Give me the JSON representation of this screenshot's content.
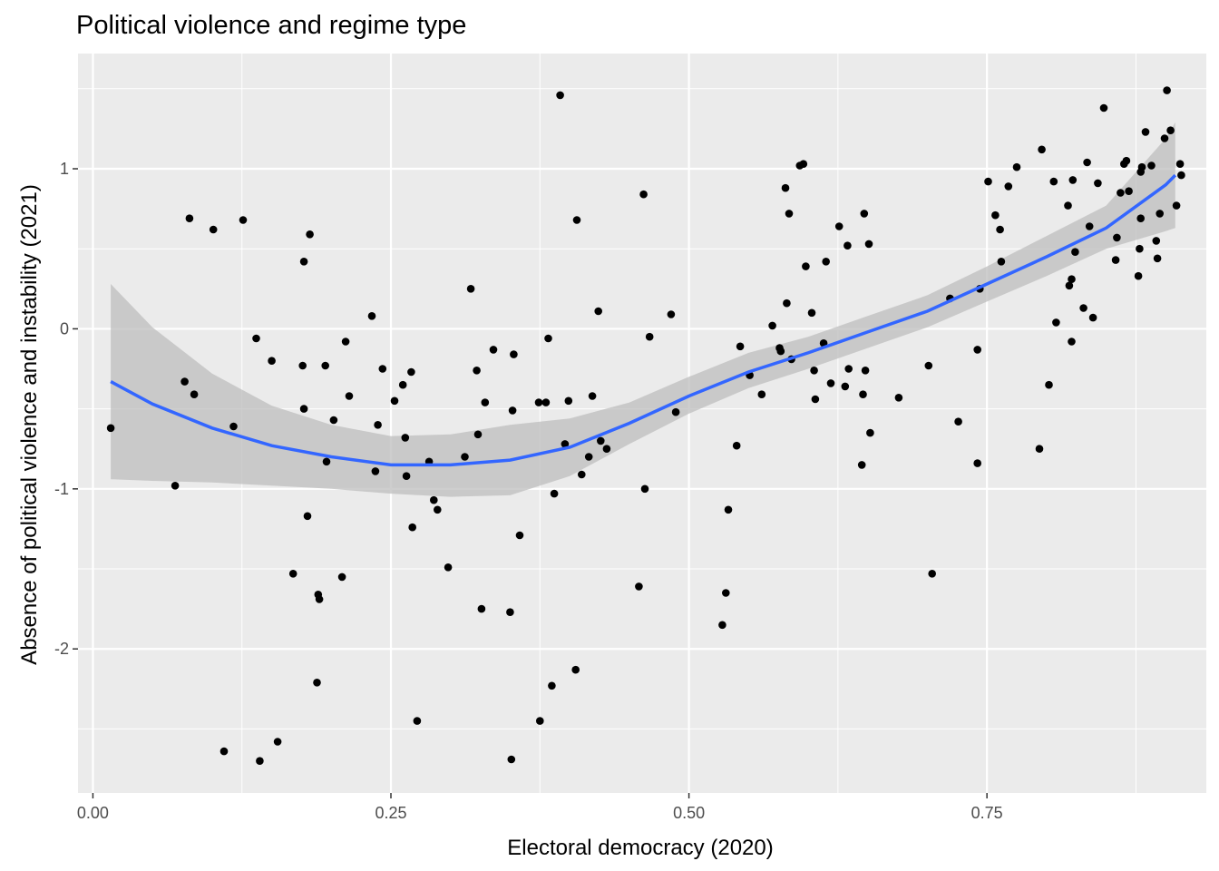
{
  "chart_data": {
    "type": "scatter",
    "title": "Political violence and regime type",
    "xlabel": "Electoral democracy (2020)",
    "ylabel": "Absence of political violence and instability (2021)",
    "xlim": [
      -0.0125,
      0.934
    ],
    "ylim": [
      -2.9,
      1.72
    ],
    "x_ticks": [
      0.0,
      0.25,
      0.5,
      0.75
    ],
    "x_tick_labels": [
      "0.00",
      "0.25",
      "0.50",
      "0.75"
    ],
    "y_ticks": [
      -2,
      -1,
      0,
      1
    ],
    "y_tick_labels": [
      "-2",
      "-1",
      "0",
      "1"
    ],
    "grid": true,
    "legend": "none",
    "colors": {
      "panel_background": "#ebebeb",
      "grid_line": "#ffffff",
      "point": "#000000",
      "smooth_line": "#3366ff",
      "confidence_band": "#bebebe"
    },
    "smooth": {
      "method": "loess",
      "x": [
        0.015,
        0.05,
        0.1,
        0.15,
        0.2,
        0.25,
        0.3,
        0.35,
        0.4,
        0.45,
        0.5,
        0.55,
        0.6,
        0.65,
        0.7,
        0.75,
        0.8,
        0.85,
        0.9,
        0.908
      ],
      "y": [
        -0.33,
        -0.47,
        -0.62,
        -0.73,
        -0.8,
        -0.85,
        -0.85,
        -0.82,
        -0.74,
        -0.59,
        -0.42,
        -0.27,
        -0.15,
        -0.02,
        0.11,
        0.28,
        0.45,
        0.63,
        0.9,
        0.96
      ],
      "lower": [
        -0.94,
        -0.95,
        -0.96,
        -0.98,
        -1.0,
        -1.03,
        -1.05,
        -1.04,
        -0.92,
        -0.72,
        -0.53,
        -0.37,
        -0.25,
        -0.12,
        0.01,
        0.17,
        0.33,
        0.5,
        0.61,
        0.63
      ],
      "upper": [
        0.28,
        0.01,
        -0.28,
        -0.48,
        -0.6,
        -0.67,
        -0.66,
        -0.6,
        -0.56,
        -0.46,
        -0.3,
        -0.15,
        -0.05,
        0.08,
        0.21,
        0.39,
        0.58,
        0.77,
        1.19,
        1.29
      ]
    },
    "points": [
      [
        0.015,
        -0.62
      ],
      [
        0.069,
        -0.98
      ],
      [
        0.077,
        -0.33
      ],
      [
        0.081,
        0.69
      ],
      [
        0.085,
        -0.41
      ],
      [
        0.101,
        0.62
      ],
      [
        0.11,
        -2.64
      ],
      [
        0.118,
        -0.61
      ],
      [
        0.126,
        0.68
      ],
      [
        0.137,
        -0.06
      ],
      [
        0.14,
        -2.7
      ],
      [
        0.15,
        -0.2
      ],
      [
        0.155,
        -2.58
      ],
      [
        0.168,
        -1.53
      ],
      [
        0.176,
        -0.23
      ],
      [
        0.177,
        0.42
      ],
      [
        0.177,
        -0.5
      ],
      [
        0.18,
        -1.17
      ],
      [
        0.182,
        0.59
      ],
      [
        0.188,
        -2.21
      ],
      [
        0.189,
        -1.66
      ],
      [
        0.19,
        -1.69
      ],
      [
        0.195,
        -0.23
      ],
      [
        0.196,
        -0.83
      ],
      [
        0.202,
        -0.57
      ],
      [
        0.209,
        -1.55
      ],
      [
        0.212,
        -0.08
      ],
      [
        0.215,
        -0.42
      ],
      [
        0.234,
        0.08
      ],
      [
        0.237,
        -0.89
      ],
      [
        0.239,
        -0.6
      ],
      [
        0.243,
        -0.25
      ],
      [
        0.253,
        -0.45
      ],
      [
        0.26,
        -0.35
      ],
      [
        0.262,
        -0.68
      ],
      [
        0.263,
        -0.92
      ],
      [
        0.267,
        -0.27
      ],
      [
        0.268,
        -1.24
      ],
      [
        0.272,
        -2.45
      ],
      [
        0.282,
        -0.83
      ],
      [
        0.286,
        -1.07
      ],
      [
        0.289,
        -1.13
      ],
      [
        0.298,
        -1.49
      ],
      [
        0.312,
        -0.8
      ],
      [
        0.317,
        0.25
      ],
      [
        0.322,
        -0.26
      ],
      [
        0.323,
        -0.66
      ],
      [
        0.326,
        -1.75
      ],
      [
        0.329,
        -0.46
      ],
      [
        0.336,
        -0.13
      ],
      [
        0.35,
        -1.77
      ],
      [
        0.351,
        -2.69
      ],
      [
        0.352,
        -0.51
      ],
      [
        0.353,
        -0.16
      ],
      [
        0.358,
        -1.29
      ],
      [
        0.374,
        -0.46
      ],
      [
        0.375,
        -2.45
      ],
      [
        0.38,
        -0.46
      ],
      [
        0.382,
        -0.06
      ],
      [
        0.385,
        -2.23
      ],
      [
        0.387,
        -1.03
      ],
      [
        0.392,
        1.46
      ],
      [
        0.396,
        -0.72
      ],
      [
        0.399,
        -0.45
      ],
      [
        0.405,
        -2.13
      ],
      [
        0.406,
        0.68
      ],
      [
        0.41,
        -0.91
      ],
      [
        0.416,
        -0.8
      ],
      [
        0.419,
        -0.42
      ],
      [
        0.424,
        0.11
      ],
      [
        0.426,
        -0.7
      ],
      [
        0.431,
        -0.75
      ],
      [
        0.458,
        -1.61
      ],
      [
        0.462,
        0.84
      ],
      [
        0.463,
        -1.0
      ],
      [
        0.467,
        -0.05
      ],
      [
        0.485,
        0.09
      ],
      [
        0.489,
        -0.52
      ],
      [
        0.528,
        -1.85
      ],
      [
        0.531,
        -1.65
      ],
      [
        0.533,
        -1.13
      ],
      [
        0.54,
        -0.73
      ],
      [
        0.543,
        -0.11
      ],
      [
        0.551,
        -0.29
      ],
      [
        0.561,
        -0.41
      ],
      [
        0.57,
        0.02
      ],
      [
        0.576,
        -0.12
      ],
      [
        0.577,
        -0.14
      ],
      [
        0.581,
        0.88
      ],
      [
        0.582,
        0.16
      ],
      [
        0.584,
        0.72
      ],
      [
        0.586,
        -0.19
      ],
      [
        0.593,
        1.02
      ],
      [
        0.596,
        1.03
      ],
      [
        0.598,
        0.39
      ],
      [
        0.603,
        0.1
      ],
      [
        0.605,
        -0.26
      ],
      [
        0.606,
        -0.44
      ],
      [
        0.613,
        -0.09
      ],
      [
        0.615,
        0.42
      ],
      [
        0.619,
        -0.34
      ],
      [
        0.626,
        0.64
      ],
      [
        0.631,
        -0.36
      ],
      [
        0.633,
        0.52
      ],
      [
        0.634,
        -0.25
      ],
      [
        0.645,
        -0.85
      ],
      [
        0.646,
        -0.41
      ],
      [
        0.647,
        0.72
      ],
      [
        0.648,
        -0.26
      ],
      [
        0.651,
        0.53
      ],
      [
        0.652,
        -0.65
      ],
      [
        0.676,
        -0.43
      ],
      [
        0.701,
        -0.23
      ],
      [
        0.704,
        -1.53
      ],
      [
        0.719,
        0.19
      ],
      [
        0.726,
        -0.58
      ],
      [
        0.742,
        -0.13
      ],
      [
        0.742,
        -0.84
      ],
      [
        0.744,
        0.25
      ],
      [
        0.751,
        0.92
      ],
      [
        0.757,
        0.71
      ],
      [
        0.761,
        0.62
      ],
      [
        0.762,
        0.42
      ],
      [
        0.768,
        0.89
      ],
      [
        0.775,
        1.01
      ],
      [
        0.794,
        -0.75
      ],
      [
        0.796,
        1.12
      ],
      [
        0.802,
        -0.35
      ],
      [
        0.806,
        0.92
      ],
      [
        0.808,
        0.04
      ],
      [
        0.818,
        0.77
      ],
      [
        0.819,
        0.27
      ],
      [
        0.821,
        0.31
      ],
      [
        0.821,
        -0.08
      ],
      [
        0.822,
        0.93
      ],
      [
        0.824,
        0.48
      ],
      [
        0.831,
        0.13
      ],
      [
        0.834,
        1.04
      ],
      [
        0.836,
        0.64
      ],
      [
        0.839,
        0.07
      ],
      [
        0.843,
        0.91
      ],
      [
        0.848,
        1.38
      ],
      [
        0.858,
        0.43
      ],
      [
        0.859,
        0.57
      ],
      [
        0.862,
        0.85
      ],
      [
        0.865,
        1.03
      ],
      [
        0.867,
        1.05
      ],
      [
        0.869,
        0.86
      ],
      [
        0.877,
        0.33
      ],
      [
        0.878,
        0.5
      ],
      [
        0.879,
        0.69
      ],
      [
        0.879,
        0.98
      ],
      [
        0.88,
        1.01
      ],
      [
        0.883,
        1.23
      ],
      [
        0.888,
        1.02
      ],
      [
        0.892,
        0.55
      ],
      [
        0.893,
        0.44
      ],
      [
        0.895,
        0.72
      ],
      [
        0.899,
        1.19
      ],
      [
        0.901,
        1.49
      ],
      [
        0.904,
        1.24
      ],
      [
        0.909,
        0.77
      ],
      [
        0.912,
        1.03
      ],
      [
        0.913,
        0.96
      ]
    ]
  }
}
